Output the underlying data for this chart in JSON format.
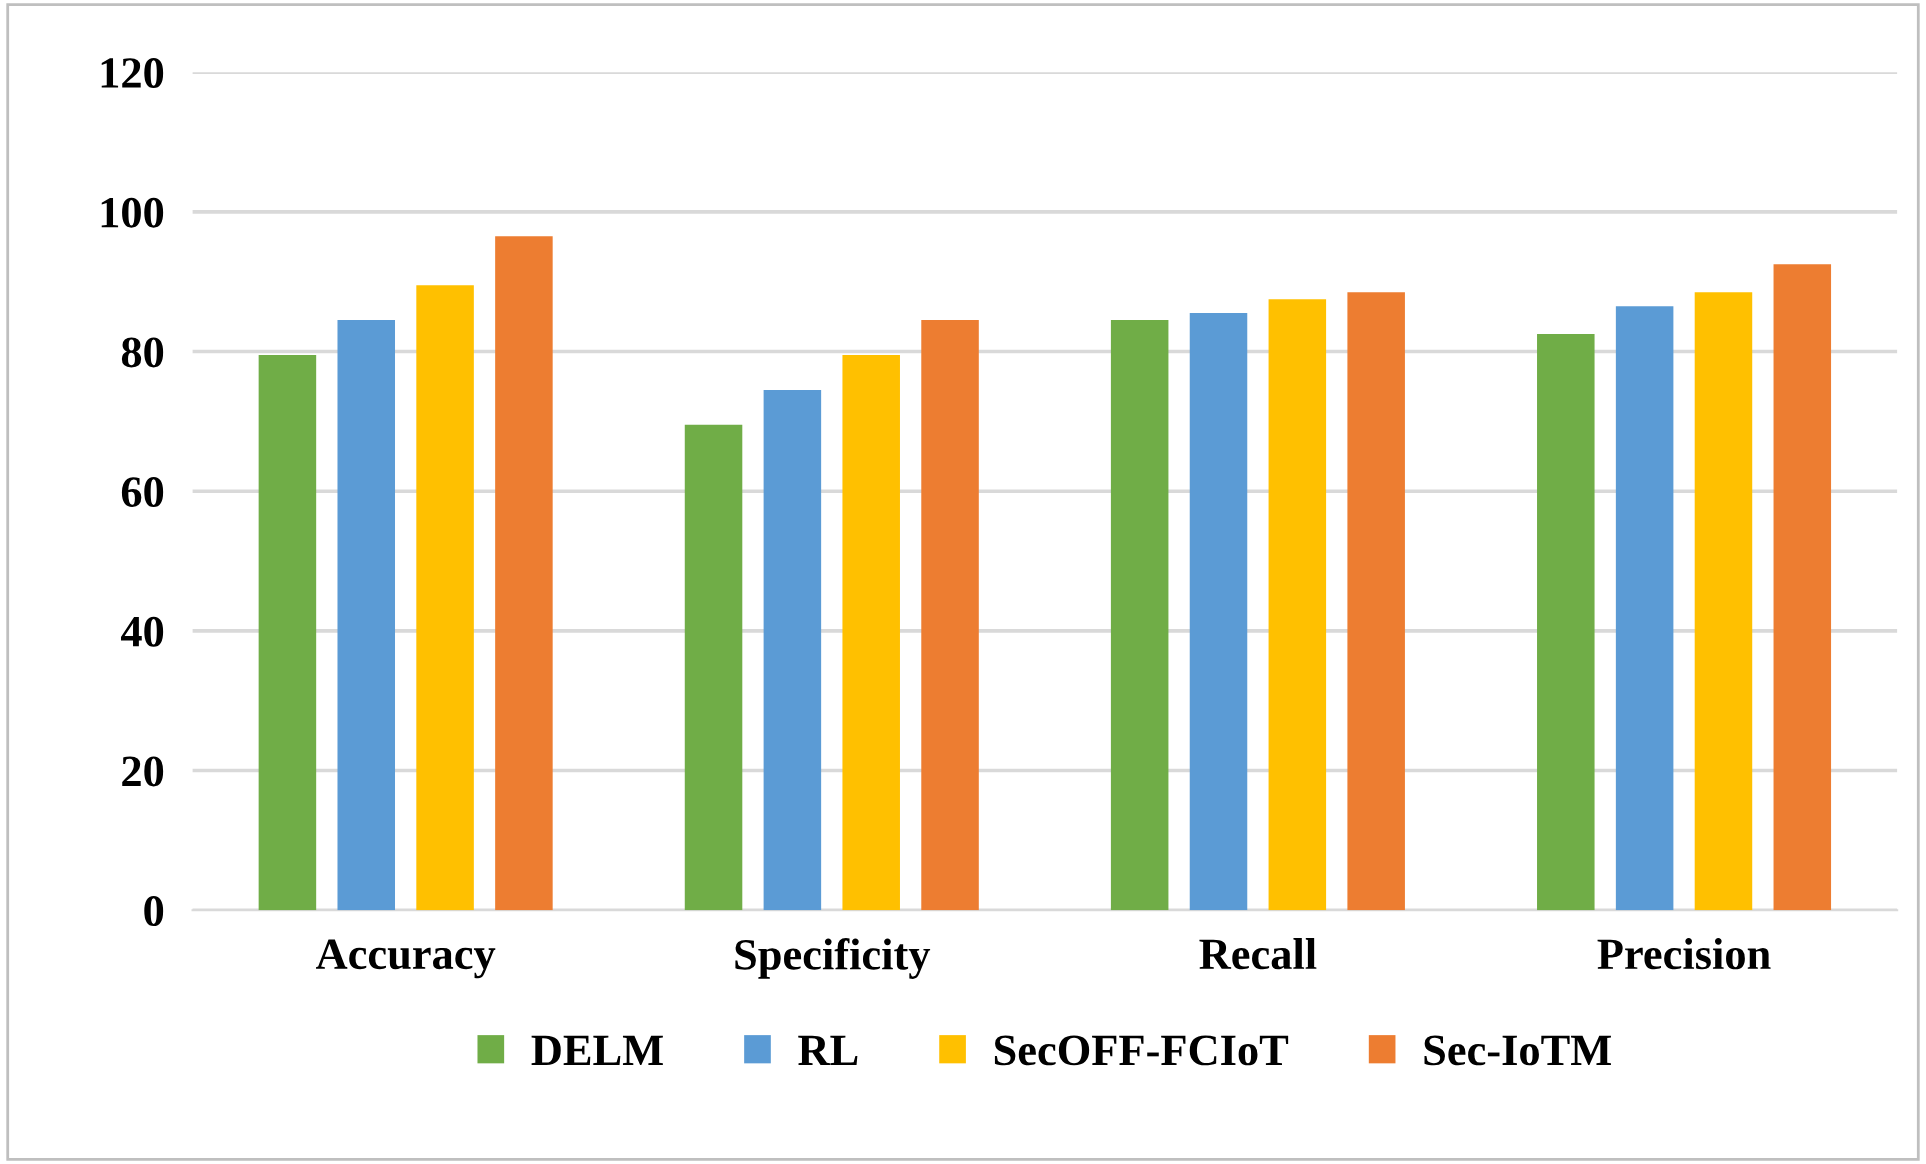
{
  "chart_data": {
    "type": "bar",
    "categories": [
      "Accuracy",
      "Specificity",
      "Recall",
      "Precision"
    ],
    "series": [
      {
        "name": "DELM",
        "color": "#70ad47",
        "values": [
          79.5,
          69.5,
          84.5,
          82.5
        ]
      },
      {
        "name": "RL",
        "color": "#5b9bd5",
        "values": [
          84.5,
          74.5,
          85.5,
          86.5
        ]
      },
      {
        "name": "SecOFF-FCIoT",
        "color": "#ffc000",
        "values": [
          89.5,
          79.5,
          87.5,
          88.5
        ]
      },
      {
        "name": "Sec-IoTM",
        "color": "#ed7d31",
        "values": [
          96.5,
          84.5,
          88.5,
          92.5
        ]
      }
    ],
    "ylim": [
      0,
      120
    ],
    "yticks": [
      0,
      20,
      40,
      60,
      80,
      100,
      120
    ],
    "grid": "y",
    "legend": "bottom"
  }
}
